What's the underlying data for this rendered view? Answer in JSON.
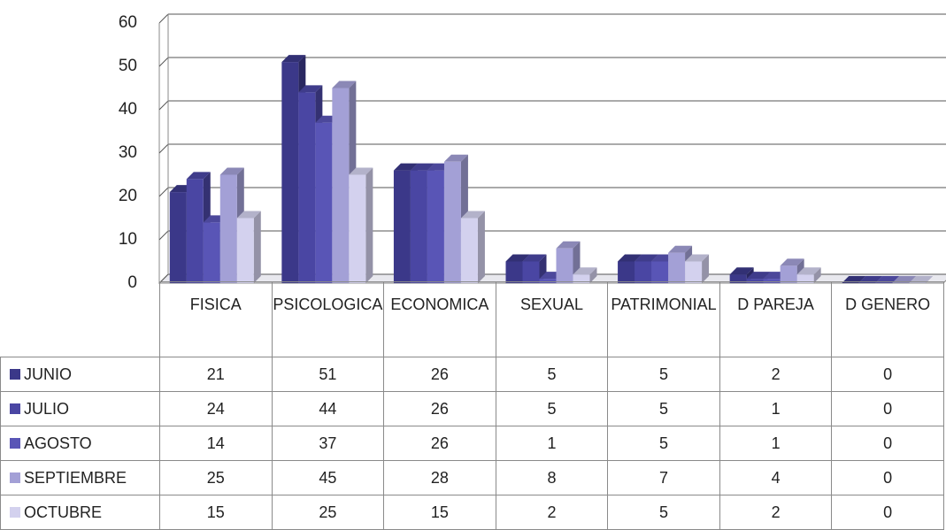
{
  "chart_data": {
    "type": "bar",
    "categories": [
      "FISICA",
      "PSICOLOGICA",
      "ECONOMICA",
      "SEXUAL",
      "PATRIMONIAL",
      "D PAREJA",
      "D GENERO"
    ],
    "series": [
      {
        "name": "JUNIO",
        "color": "#3b3889",
        "values": [
          21,
          51,
          26,
          5,
          5,
          2,
          0
        ]
      },
      {
        "name": "JULIO",
        "color": "#4a46a3",
        "values": [
          24,
          44,
          26,
          5,
          5,
          1,
          0
        ]
      },
      {
        "name": "AGOSTO",
        "color": "#5955b6",
        "values": [
          14,
          37,
          26,
          1,
          5,
          1,
          0
        ]
      },
      {
        "name": "SEPTIEMBRE",
        "color": "#a3a0d6",
        "values": [
          25,
          45,
          28,
          8,
          7,
          4,
          0
        ]
      },
      {
        "name": "OCTUBRE",
        "color": "#d3d1ee",
        "values": [
          15,
          25,
          15,
          2,
          5,
          2,
          0
        ]
      }
    ],
    "ylim": [
      0,
      60
    ],
    "yticks": [
      0,
      10,
      20,
      30,
      40,
      50,
      60
    ],
    "grid": true
  }
}
